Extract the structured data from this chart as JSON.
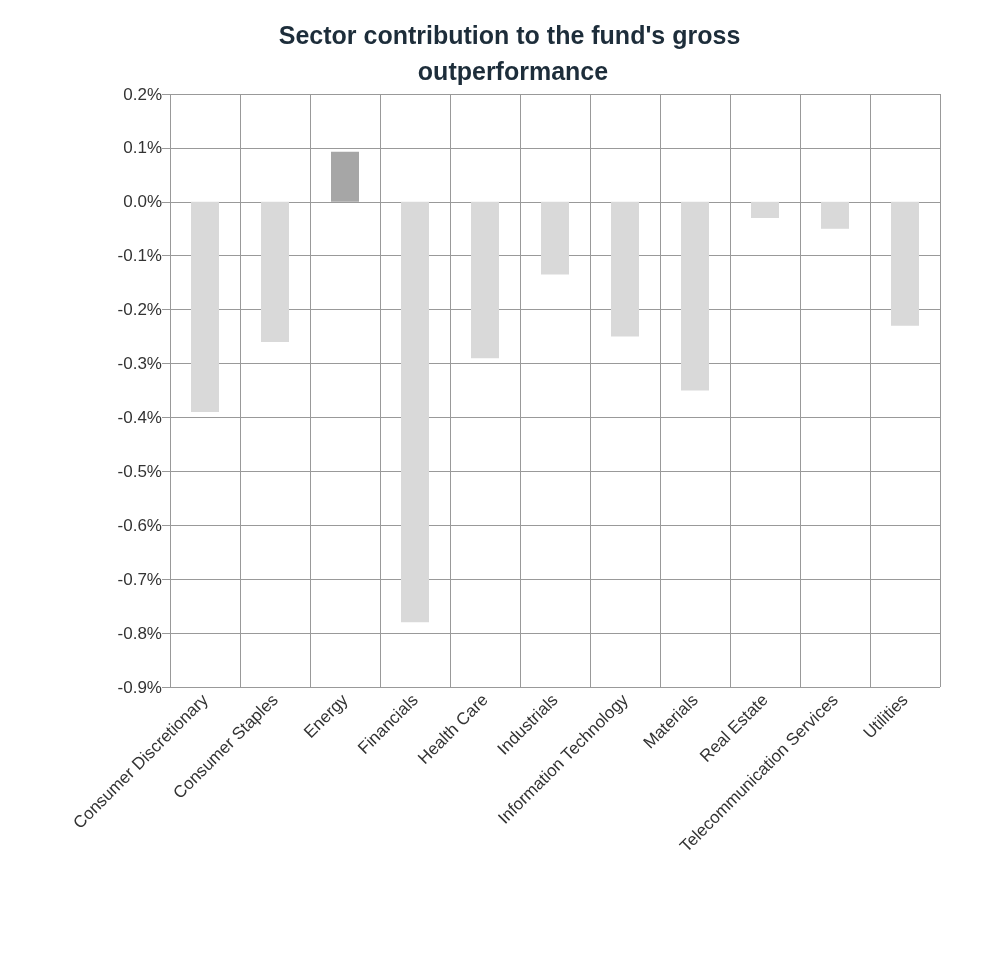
{
  "chart_data": {
    "type": "bar",
    "title": "Sector contribution to the fund's gross outperformance",
    "categories": [
      "Consumer Discretionary",
      "Consumer Staples",
      "Energy",
      "Financials",
      "Health Care",
      "Industrials",
      "Information Technology",
      "Materials",
      "Real Estate",
      "Telecommunication Services",
      "Utilities"
    ],
    "values": [
      -0.39,
      -0.26,
      0.093,
      -0.78,
      -0.29,
      -0.135,
      -0.25,
      -0.35,
      -0.03,
      -0.05,
      -0.23
    ],
    "colors": [
      "#d9d9d9",
      "#d9d9d9",
      "#a6a6a6",
      "#d9d9d9",
      "#d9d9d9",
      "#d9d9d9",
      "#d9d9d9",
      "#d9d9d9",
      "#d9d9d9",
      "#d9d9d9",
      "#d9d9d9"
    ],
    "ylim": [
      -0.9,
      0.2
    ],
    "yticks": [
      {
        "value": 0.2,
        "label": "0.2%"
      },
      {
        "value": 0.1,
        "label": "0.1%"
      },
      {
        "value": 0,
        "label": "0.0%"
      },
      {
        "value": -0.1,
        "label": "-0.1%"
      },
      {
        "value": -0.2,
        "label": "-0.2%"
      },
      {
        "value": -0.3,
        "label": "-0.3%"
      },
      {
        "value": -0.4,
        "label": "-0.4%"
      },
      {
        "value": -0.5,
        "label": "-0.5%"
      },
      {
        "value": -0.6,
        "label": "-0.6%"
      },
      {
        "value": -0.7,
        "label": "-0.7%"
      },
      {
        "value": -0.8,
        "label": "-0.8%"
      },
      {
        "value": -0.9,
        "label": "-0.9%"
      }
    ],
    "grid": true
  }
}
